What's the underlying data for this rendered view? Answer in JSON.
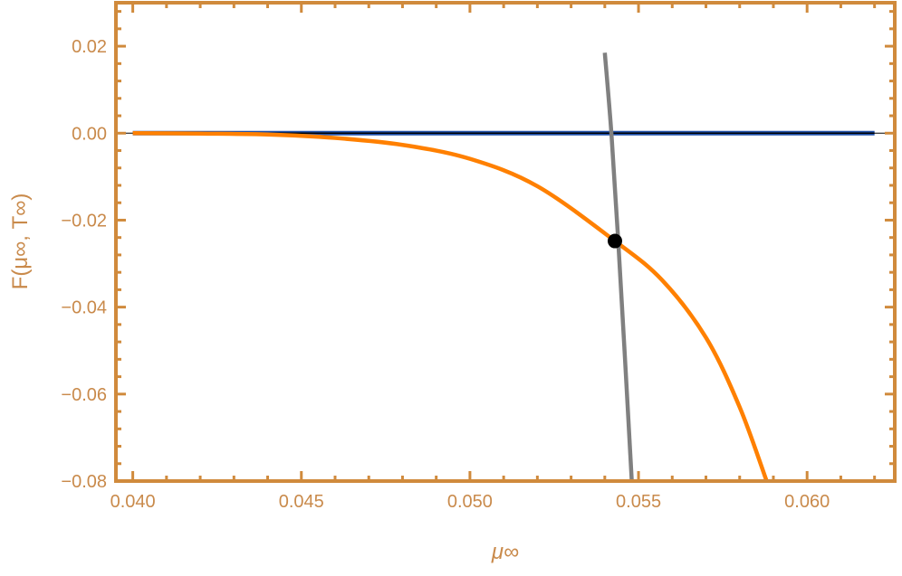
{
  "chart_data": {
    "type": "line",
    "title": "",
    "xlabel": "μ∞",
    "ylabel": "F(μ∞, T∞)",
    "xlim": [
      0.0395,
      0.0626
    ],
    "ylim": [
      -0.08,
      0.03
    ],
    "grid": false,
    "x_ticks": [
      "0.040",
      "0.045",
      "0.050",
      "0.055",
      "0.060"
    ],
    "x_tick_values": [
      0.04,
      0.045,
      0.05,
      0.055,
      0.06
    ],
    "y_ticks": [
      "0.02",
      "0.00",
      "-0.02",
      "-0.04",
      "-0.06",
      "-0.08"
    ],
    "y_tick_values": [
      0.02,
      0.0,
      -0.02,
      -0.04,
      -0.06,
      -0.08
    ],
    "series": [
      {
        "color": "#1F4FA8",
        "x": [
          0.04,
          0.062
        ],
        "y": [
          0.0,
          0.0
        ]
      },
      {
        "color": "#FF8000",
        "x": [
          0.04,
          0.042,
          0.044,
          0.046,
          0.048,
          0.05,
          0.052,
          0.0543,
          0.0557,
          0.057,
          0.058,
          0.0588
        ],
        "y": [
          0.0,
          -0.0001,
          -0.0003,
          -0.0011,
          -0.0027,
          -0.0059,
          -0.0122,
          -0.0248,
          -0.0338,
          -0.047,
          -0.063,
          -0.08
        ]
      },
      {
        "color": "#808080",
        "x": [
          0.054,
          0.0542,
          0.0544,
          0.0546,
          0.0548
        ],
        "y": [
          0.0185,
          -0.0005,
          -0.025,
          -0.052,
          -0.08
        ]
      }
    ],
    "points": [
      {
        "x": 0.0543,
        "y": -0.0248,
        "color": "#000000"
      }
    ],
    "colors": {
      "axes": "#D08A3C",
      "labels": "#C98A4B"
    }
  }
}
